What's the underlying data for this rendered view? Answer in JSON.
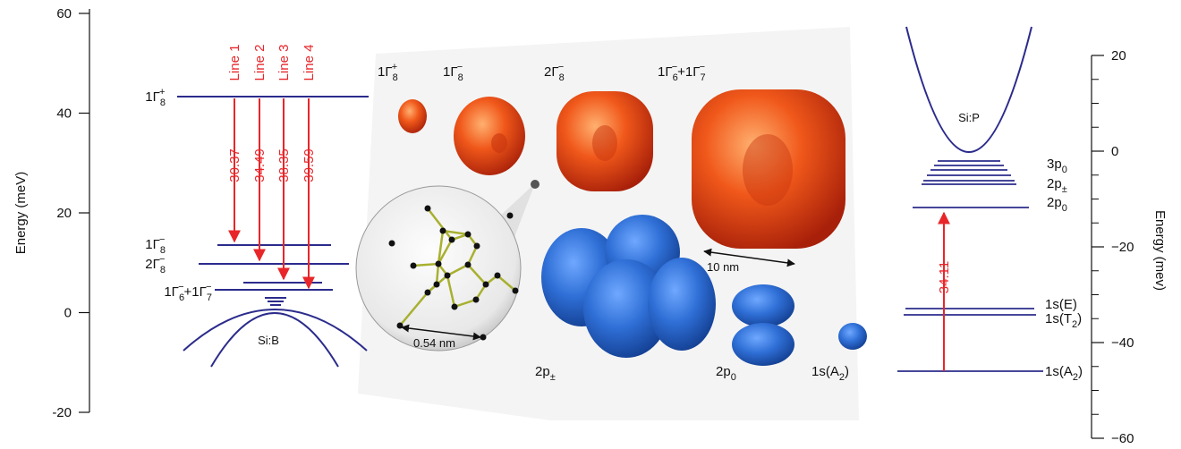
{
  "left_axis": {
    "label": "Energy  (meV)",
    "ticks": [
      "60",
      "40",
      "20",
      "0",
      "-20"
    ]
  },
  "right_axis": {
    "label": "Energy  (mev)",
    "ticks": [
      "20",
      "0",
      "−20",
      "−40",
      "−60"
    ]
  },
  "boron": {
    "name": "Si:B",
    "levels": [
      [
        {
          "base": "1Γ",
          "sub": "8",
          "sup": "+"
        }
      ],
      [
        {
          "base": "1Γ",
          "sub": "8",
          "sup": "−"
        }
      ],
      [
        {
          "base": "2Γ",
          "sub": "8",
          "sup": "−"
        }
      ],
      [
        {
          "base": "1Γ",
          "sub": "6",
          "sup": "−"
        },
        {
          "base": "+1Γ",
          "sub": "7",
          "sup": "−"
        }
      ]
    ],
    "lines": [
      "Line 1",
      "Line 2",
      "Line 3",
      "Line 4"
    ],
    "energies": [
      "30.37",
      "34.49",
      "38.35",
      "39.59"
    ]
  },
  "orbitals": {
    "top_labels": [
      [
        {
          "base": "1Γ",
          "sub": "8",
          "sup": "+"
        }
      ],
      [
        {
          "base": "1Γ",
          "sub": "8",
          "sup": "−"
        }
      ],
      [
        {
          "base": "2Γ",
          "sub": "8",
          "sup": "−"
        }
      ],
      [
        {
          "base": "1Γ",
          "sub": "6",
          "sup": "−"
        },
        {
          "base": "+1Γ",
          "sub": "7",
          "sup": "−"
        }
      ]
    ],
    "bottom_labels": [
      [
        {
          "base": "2p",
          "sub": "±"
        }
      ],
      [
        {
          "base": "2p",
          "sub": "0"
        }
      ],
      [
        {
          "base": "1s(A",
          "sub": "2"
        },
        {
          "base": ")"
        }
      ]
    ],
    "lattice_scale": "0.54 nm",
    "orbital_scale": "10 nm"
  },
  "phosphorus": {
    "name": "Si:P",
    "levels": [
      [
        {
          "base": "3p",
          "sub": "0"
        }
      ],
      [
        {
          "base": "2p",
          "sub": "±"
        }
      ],
      [
        {
          "base": "2p",
          "sub": "0"
        }
      ],
      [
        {
          "base": "1s(E)"
        }
      ],
      [
        {
          "base": "1s(T",
          "sub": "2"
        },
        {
          "base": ")"
        }
      ],
      [
        {
          "base": "1s(A",
          "sub": "2"
        },
        {
          "base": ")"
        }
      ]
    ],
    "transition": "34.11"
  }
}
